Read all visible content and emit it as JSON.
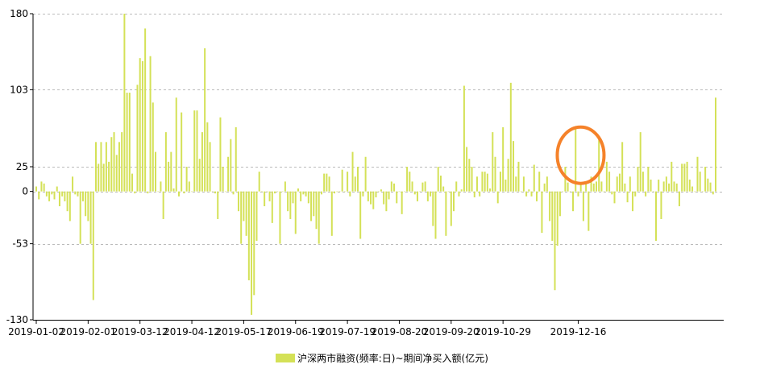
{
  "chart_data": {
    "type": "bar",
    "ylim": [
      -130,
      180
    ],
    "y_ticks": [
      "180",
      "103",
      "25",
      "0",
      "-53",
      "-130"
    ],
    "y_tick_values": [
      180,
      103,
      25,
      0,
      -53,
      -130
    ],
    "x_tick_labels": [
      "2019-01-02",
      "2019-02-01",
      "2019-03-12",
      "2019-04-12",
      "2019-05-17",
      "2019-06-19",
      "2019-07-19",
      "2019-08-20",
      "2019-09-20",
      "2019-10-29",
      "2019-12-16"
    ],
    "x_tick_positions": [
      0,
      20,
      40,
      60,
      80,
      100,
      120,
      140,
      160,
      180,
      209
    ],
    "grid": "horizontal-dashed",
    "bar_color": "#d4e157",
    "highlight_color": "#f5822a",
    "highlight_index": 209,
    "series": [
      {
        "name": "沪深两市融资(频率:日)~期间净买入额(亿元)",
        "values": [
          5,
          -8,
          10,
          8,
          -5,
          -10,
          -3,
          -8,
          5,
          -15,
          -5,
          -10,
          -20,
          -30,
          15,
          -3,
          -5,
          -53,
          -10,
          -25,
          -30,
          -53,
          -110,
          50,
          28,
          50,
          28,
          50,
          30,
          55,
          60,
          37,
          50,
          60,
          180,
          100,
          100,
          18,
          -2,
          108,
          135,
          132,
          165,
          -2,
          137,
          90,
          40,
          0,
          10,
          -28,
          60,
          30,
          40,
          3,
          95,
          -5,
          80,
          -2,
          25,
          10,
          0,
          82,
          82,
          33,
          60,
          145,
          70,
          50,
          0,
          -2,
          -28,
          75,
          25,
          0,
          35,
          53,
          -3,
          65,
          -20,
          -53,
          -30,
          -45,
          -90,
          -125,
          -105,
          -50,
          20,
          0,
          -15,
          0,
          -10,
          -32,
          -2,
          0,
          -53,
          0,
          10,
          -20,
          -28,
          -12,
          -43,
          3,
          -10,
          -3,
          -5,
          -12,
          -30,
          -25,
          -38,
          -53,
          -3,
          18,
          18,
          15,
          -45,
          -2,
          0,
          0,
          22,
          0,
          20,
          -5,
          40,
          15,
          25,
          -48,
          -5,
          35,
          -10,
          -13,
          -18,
          -6,
          0,
          2,
          -13,
          -20,
          -8,
          10,
          8,
          -12,
          0,
          -23,
          0,
          25,
          20,
          10,
          -3,
          -10,
          0,
          9,
          10,
          -10,
          -5,
          -35,
          -48,
          25,
          16,
          5,
          -45,
          0,
          -35,
          -20,
          10,
          -5,
          2,
          107,
          45,
          33,
          25,
          -6,
          15,
          -5,
          20,
          20,
          18,
          3,
          60,
          35,
          -12,
          20,
          65,
          12,
          33,
          110,
          51,
          15,
          30,
          0,
          15,
          -5,
          2,
          -5,
          27,
          -10,
          20,
          -42,
          8,
          15,
          -30,
          -50,
          -100,
          -55,
          -25,
          0,
          25,
          9,
          0,
          -20,
          65,
          -5,
          8,
          -30,
          10,
          -40,
          15,
          8,
          10,
          55,
          10,
          0,
          30,
          20,
          -3,
          -12,
          15,
          18,
          50,
          8,
          -11,
          15,
          -20,
          -5,
          25,
          60,
          20,
          -5,
          25,
          12,
          0,
          -50,
          12,
          -28,
          10,
          15,
          8,
          30,
          10,
          8,
          -15,
          28,
          28,
          30,
          12,
          5,
          0,
          35,
          20,
          0,
          25,
          13,
          9,
          -3,
          95
        ]
      }
    ]
  },
  "legend": {
    "label": "沪深两市融资(频率:日)~期间净买入额(亿元)"
  }
}
